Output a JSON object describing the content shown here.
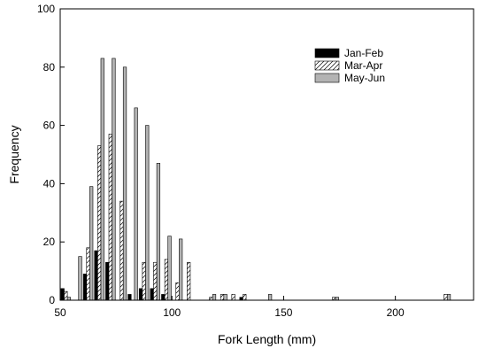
{
  "chart_data": {
    "type": "bar",
    "xlabel": "Fork Length (mm)",
    "ylabel": "Frequency",
    "xlim": [
      50,
      235
    ],
    "ylim": [
      0,
      100
    ],
    "bin_width": 5,
    "x": [
      55,
      60,
      65,
      70,
      75,
      80,
      85,
      90,
      95,
      100,
      105,
      110,
      115,
      120,
      125,
      130,
      135,
      140,
      145,
      150,
      155,
      160,
      165,
      170,
      175,
      180,
      185,
      190,
      195,
      200,
      205,
      210,
      215,
      220,
      225,
      230
    ],
    "xticks": [
      50,
      100,
      150,
      200
    ],
    "yticks": [
      0,
      20,
      40,
      60,
      80,
      100
    ],
    "series": [
      {
        "name": "Jan-Feb",
        "values": [
          4,
          0,
          9,
          17,
          13,
          0,
          2,
          4,
          4,
          2,
          0,
          0,
          0,
          0,
          0,
          0,
          1,
          0,
          0,
          0,
          0,
          0,
          0,
          0,
          0,
          0,
          0,
          0,
          0,
          0,
          0,
          0,
          0,
          0,
          0,
          0
        ]
      },
      {
        "name": "Mar-Apr",
        "values": [
          3,
          0,
          18,
          53,
          57,
          34,
          0,
          13,
          13,
          14,
          6,
          13,
          0,
          1,
          2,
          2,
          2,
          0,
          0,
          0,
          0,
          0,
          0,
          0,
          1,
          0,
          0,
          0,
          0,
          0,
          0,
          0,
          0,
          0,
          2,
          0
        ]
      },
      {
        "name": "May-Jun",
        "values": [
          1,
          15,
          39,
          83,
          83,
          80,
          66,
          60,
          47,
          22,
          21,
          0,
          0,
          2,
          2,
          0,
          0,
          0,
          2,
          0,
          0,
          0,
          0,
          0,
          1,
          0,
          0,
          0,
          0,
          0,
          0,
          0,
          0,
          0,
          2,
          0
        ]
      }
    ],
    "colors": {
      "Jan-Feb": "#000000",
      "Mar-Apr": "#ffffff",
      "May-Jun": "#b3b3b3"
    },
    "patterns": {
      "Mar-Apr": "diagonal-hatch"
    },
    "legend_position": "top-right",
    "grid": false
  }
}
